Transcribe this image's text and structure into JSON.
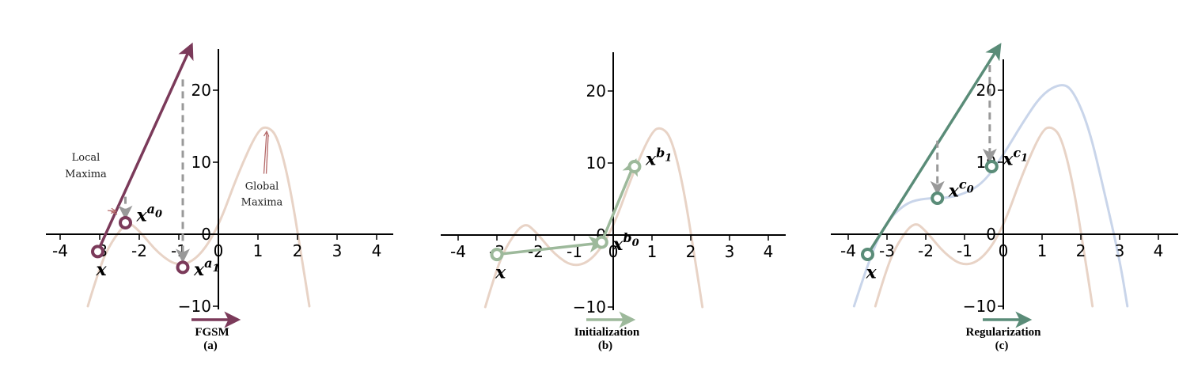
{
  "chart_data": [
    {
      "type": "line",
      "panel_label": "(a)",
      "method_label": "FGSM",
      "xticks": [
        -4,
        -3,
        -2,
        -1,
        0,
        1,
        2,
        3,
        4
      ],
      "yticks": [
        -10,
        0,
        10,
        20
      ],
      "xlim": [
        -4.4,
        4.4
      ],
      "ylim": [
        -10,
        25
      ],
      "curves": [
        {
          "color": "#e8d3c6",
          "x": [
            -3.3,
            -3.0,
            -2.7,
            -2.3,
            -2.0,
            -1.5,
            -1.0,
            -0.5,
            0.0,
            0.5,
            1.0,
            1.25,
            1.5,
            1.8,
            2.1,
            2.3
          ],
          "y": [
            -10,
            -4.5,
            -1.0,
            1.8,
            0.5,
            -2.8,
            -4.5,
            -3.3,
            1.0,
            8.5,
            14.5,
            15.0,
            13.5,
            7.0,
            -3.0,
            -10
          ]
        }
      ],
      "points": [
        {
          "name": "x",
          "label": "x",
          "sup": "",
          "x": -3.05,
          "y": -2.4,
          "color": "#7b3a5a"
        },
        {
          "name": "x-a0",
          "label": "x",
          "sup": "a",
          "sub": "0",
          "x": -2.35,
          "y": 1.6,
          "color": "#7b3a5a"
        },
        {
          "name": "x-a1",
          "label": "x",
          "sup": "a",
          "sub": "1",
          "x": -0.9,
          "y": -4.6,
          "color": "#7b3a5a"
        }
      ],
      "arrows": [
        {
          "from": [
            -3.05,
            -2.4
          ],
          "to": [
            -0.7,
            26
          ],
          "color": "#7b3a5a",
          "style": "solid"
        },
        {
          "from": [
            -2.35,
            5.2
          ],
          "to": [
            -2.35,
            2.6
          ],
          "color": "#999999",
          "style": "dashed"
        },
        {
          "from": [
            -0.9,
            21.5
          ],
          "to": [
            -0.9,
            -3.4
          ],
          "color": "#999999",
          "style": "dashed"
        },
        {
          "from": [
            -2.8,
            3.3
          ],
          "to": [
            -2.6,
            3.2
          ],
          "color": "#b56a6a",
          "style": "hollow"
        },
        {
          "from": [
            1.15,
            8.4
          ],
          "to": [
            1.22,
            14.2
          ],
          "color": "#b56a6a",
          "style": "hollow"
        }
      ],
      "annotations": [
        {
          "text": "Local",
          "x": -3.35,
          "y": 10.2
        },
        {
          "text": "Maxima",
          "x": -3.35,
          "y": 7.9
        },
        {
          "text": "Global",
          "x": 1.1,
          "y": 6.2
        },
        {
          "text": "Maxima",
          "x": 1.1,
          "y": 4.0
        }
      ],
      "legend_color": "#7b3a5a"
    },
    {
      "type": "line",
      "panel_label": "(b)",
      "method_label": "Initialization",
      "xticks": [
        -4,
        -3,
        -2,
        -1,
        0,
        1,
        2,
        3,
        4
      ],
      "yticks": [
        -10,
        0,
        10,
        20
      ],
      "xlim": [
        -4.4,
        4.4
      ],
      "ylim": [
        -10,
        25
      ],
      "curves": [
        {
          "color": "#e8d3c6",
          "x": [
            -3.3,
            -3.0,
            -2.7,
            -2.3,
            -2.0,
            -1.5,
            -1.0,
            -0.5,
            0.0,
            0.5,
            1.0,
            1.25,
            1.5,
            1.8,
            2.1,
            2.3
          ],
          "y": [
            -10,
            -4.5,
            -1.0,
            1.8,
            0.5,
            -2.8,
            -4.5,
            -3.3,
            1.0,
            8.5,
            14.5,
            15.0,
            13.5,
            7.0,
            -3.0,
            -10
          ]
        }
      ],
      "points": [
        {
          "name": "x",
          "label": "x",
          "sup": "",
          "x": -3.0,
          "y": -2.7,
          "color": "#9db99b"
        },
        {
          "name": "x-b0",
          "label": "x",
          "sup": "b",
          "sub": "0",
          "x": -0.3,
          "y": -1.0,
          "color": "#9db99b"
        },
        {
          "name": "x-b1",
          "label": "x",
          "sup": "b",
          "sub": "1",
          "x": 0.55,
          "y": 9.5,
          "color": "#9db99b"
        }
      ],
      "arrows": [
        {
          "from": [
            -3.0,
            -2.7
          ],
          "to": [
            -0.32,
            -1.1
          ],
          "color": "#9db99b",
          "style": "solid"
        },
        {
          "from": [
            -0.3,
            -1.0
          ],
          "to": [
            0.55,
            10.0
          ],
          "color": "#9db99b",
          "style": "solid"
        }
      ],
      "annotations": [],
      "legend_color": "#9db99b"
    },
    {
      "type": "line",
      "panel_label": "(c)",
      "method_label": "Regularization",
      "xticks": [
        -4,
        -3,
        -2,
        -1,
        0,
        1,
        2,
        3,
        4
      ],
      "yticks": [
        -10,
        0,
        10,
        20
      ],
      "xlim": [
        -4.4,
        4.4
      ],
      "ylim": [
        -10,
        25
      ],
      "curves": [
        {
          "color": "#e8d3c6",
          "x": [
            -3.3,
            -3.0,
            -2.7,
            -2.3,
            -2.0,
            -1.5,
            -1.0,
            -0.5,
            0.0,
            0.5,
            1.0,
            1.25,
            1.5,
            1.8,
            2.1,
            2.3
          ],
          "y": [
            -10,
            -4.5,
            -1.0,
            1.8,
            0.5,
            -2.8,
            -4.5,
            -3.3,
            1.0,
            8.5,
            14.5,
            15.0,
            13.5,
            7.0,
            -3.0,
            -10
          ]
        },
        {
          "color": "#c9d5ea",
          "x": [
            -3.85,
            -3.4,
            -3.0,
            -2.5,
            -2.0,
            -1.5,
            -1.0,
            -0.5,
            0.0,
            0.5,
            1.0,
            1.5,
            1.8,
            2.2,
            2.6,
            3.0,
            3.2
          ],
          "y": [
            -10,
            -2.5,
            1.8,
            4.4,
            5.0,
            5.0,
            5.6,
            7.2,
            11.0,
            15.5,
            19.5,
            21.0,
            20.0,
            15.0,
            6.0,
            -3.5,
            -10
          ]
        }
      ],
      "points": [
        {
          "name": "x",
          "label": "x",
          "sup": "",
          "x": -3.5,
          "y": -2.8,
          "color": "#5a8c78"
        },
        {
          "name": "x-c0",
          "label": "x",
          "sup": "c",
          "sub": "0",
          "x": -1.7,
          "y": 5.0,
          "color": "#5a8c78"
        },
        {
          "name": "x-c1",
          "label": "x",
          "sup": "c",
          "sub": "1",
          "x": -0.3,
          "y": 9.4,
          "color": "#5a8c78"
        }
      ],
      "arrows": [
        {
          "from": [
            -3.5,
            -2.8
          ],
          "to": [
            -0.12,
            26
          ],
          "color": "#5a8c78",
          "style": "solid"
        },
        {
          "from": [
            -1.7,
            13.0
          ],
          "to": [
            -1.7,
            6.0
          ],
          "color": "#999999",
          "style": "dashed"
        },
        {
          "from": [
            -0.35,
            23.5
          ],
          "to": [
            -0.35,
            10.5
          ],
          "color": "#999999",
          "style": "dashed"
        }
      ],
      "annotations": [],
      "legend_color": "#5a8c78"
    }
  ]
}
